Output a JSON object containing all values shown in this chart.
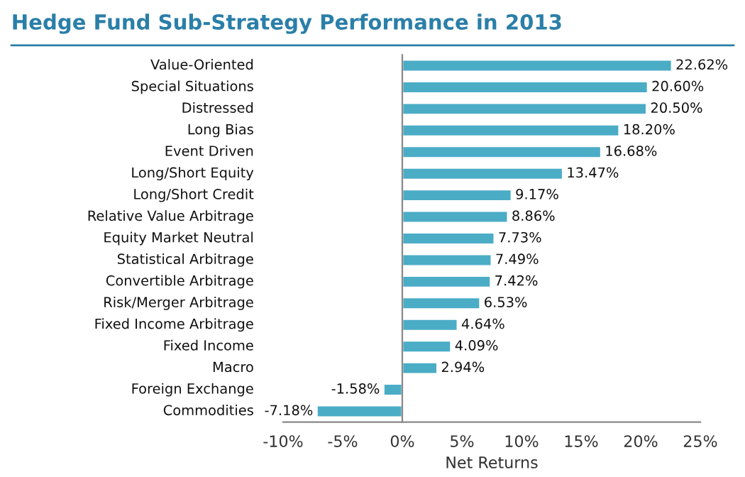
{
  "chart_data": {
    "type": "bar",
    "orientation": "horizontal",
    "title": "Hedge Fund Sub-Strategy Performance in 2013",
    "xlabel": "Net Returns",
    "categories": [
      "Value-Oriented",
      "Special Situations",
      "Distressed",
      "Long Bias",
      "Event Driven",
      "Long/Short Equity",
      "Long/Short Credit",
      "Relative Value Arbitrage",
      "Equity Market Neutral",
      "Statistical Arbitrage",
      "Convertible Arbitrage",
      "Risk/Merger Arbitrage",
      "Fixed Income Arbitrage",
      "Fixed Income",
      "Macro",
      "Foreign Exchange",
      "Commodities"
    ],
    "values": [
      22.62,
      20.6,
      20.5,
      18.2,
      16.68,
      13.47,
      9.17,
      8.86,
      7.73,
      7.49,
      7.42,
      6.53,
      4.64,
      4.09,
      2.94,
      -1.58,
      -7.18
    ],
    "value_labels": [
      "22.62%",
      "20.60%",
      "20.50%",
      "18.20%",
      "16.68%",
      "13.47%",
      "9.17%",
      "8.86%",
      "7.73%",
      "7.49%",
      "7.42%",
      "6.53%",
      "4.64%",
      "4.09%",
      "2.94%",
      "-1.58%",
      "-7.18%"
    ],
    "color": "#4bacc6",
    "xlim": [
      -10,
      25
    ],
    "xticks": [
      {
        "value": -10,
        "label": "-10%"
      },
      {
        "value": -5,
        "label": "-5%"
      },
      {
        "value": 0,
        "label": "0%"
      },
      {
        "value": 5,
        "label": "5%"
      },
      {
        "value": 10,
        "label": "10%"
      },
      {
        "value": 15,
        "label": "15%"
      },
      {
        "value": 20,
        "label": "20%"
      },
      {
        "value": 25,
        "label": "25%"
      }
    ],
    "legend": false
  }
}
